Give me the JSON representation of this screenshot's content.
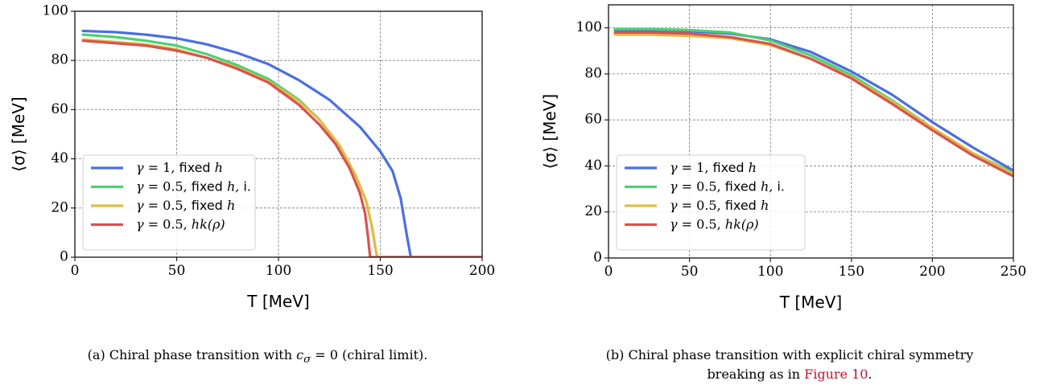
{
  "chart_data": [
    {
      "type": "line",
      "xlabel": "T [MeV]",
      "ylabel": "⟨σ⟩ [MeV]",
      "xlim": [
        0,
        200
      ],
      "ylim": [
        0,
        100
      ],
      "xticks": [
        0,
        50,
        100,
        150,
        200
      ],
      "yticks": [
        0,
        20,
        40,
        60,
        80,
        100
      ],
      "grid": true,
      "legend_position": "lower-left",
      "series": [
        {
          "name": "γ = 1, fixed h",
          "color": "#4c6ee0",
          "x": [
            4,
            20,
            35,
            50,
            65,
            80,
            95,
            110,
            125,
            140,
            150,
            156,
            160,
            163,
            165,
            170,
            200
          ],
          "y": [
            92,
            91.5,
            90.5,
            89,
            86.5,
            83,
            78.5,
            72,
            64,
            53,
            43,
            35,
            24,
            9,
            0,
            0,
            0
          ]
        },
        {
          "name": "γ = 0.5, fixed h, i.",
          "color": "#4cd070",
          "x": [
            4,
            20,
            35,
            50,
            65,
            80,
            95,
            110,
            120,
            130,
            138,
            143,
            146,
            147.5,
            148.5,
            155,
            200
          ],
          "y": [
            90.5,
            89.5,
            88,
            86,
            82.5,
            78,
            72.5,
            64,
            56,
            45,
            33,
            23,
            12,
            4,
            0,
            0,
            0
          ]
        },
        {
          "name": "γ = 0.5, fixed h",
          "color": "#dfbd45",
          "x": [
            4,
            20,
            35,
            50,
            65,
            80,
            95,
            110,
            120,
            130,
            138,
            143,
            146,
            147.5,
            148.5,
            155,
            200
          ],
          "y": [
            88.5,
            87.5,
            86.5,
            84.5,
            81,
            77,
            71.5,
            63.5,
            56,
            45.5,
            33,
            23,
            12,
            4,
            0,
            0,
            0
          ]
        },
        {
          "name": "γ = 0.5, hk(ρ)",
          "color": "#d9534f",
          "x": [
            4,
            20,
            35,
            50,
            65,
            80,
            95,
            110,
            120,
            128,
            135,
            140,
            142.5,
            144,
            145,
            150,
            200
          ],
          "y": [
            88,
            87,
            86,
            84,
            81,
            76.5,
            71,
            62,
            54,
            46,
            36,
            26,
            18,
            8,
            0,
            0,
            0
          ]
        }
      ],
      "caption": {
        "prefix": "(a) Chiral phase transition with ",
        "math": "c",
        "sub": "σ",
        "suffix": " = 0 (chiral limit)."
      }
    },
    {
      "type": "line",
      "xlabel": "T [MeV]",
      "ylabel": "⟨σ⟩ [MeV]",
      "xlim": [
        0,
        250
      ],
      "ylim": [
        0,
        110
      ],
      "xticks": [
        0,
        50,
        100,
        150,
        200,
        250
      ],
      "yticks": [
        0,
        20,
        40,
        60,
        80,
        100
      ],
      "grid": true,
      "legend_position": "lower-left",
      "series": [
        {
          "name": "γ = 1, fixed h",
          "color": "#4c6ee0",
          "x": [
            4,
            25,
            50,
            75,
            100,
            125,
            150,
            175,
            200,
            225,
            250
          ],
          "y": [
            99,
            99,
            98.5,
            97.5,
            95,
            89.5,
            81,
            71,
            59,
            48,
            38
          ]
        },
        {
          "name": "γ = 0.5, fixed h, i.",
          "color": "#4cd070",
          "x": [
            4,
            25,
            50,
            75,
            100,
            125,
            150,
            175,
            200,
            225,
            250
          ],
          "y": [
            99.5,
            99.5,
            99,
            98,
            94.5,
            88,
            79.5,
            68.5,
            56.5,
            45.5,
            37
          ]
        },
        {
          "name": "γ = 0.5, fixed h",
          "color": "#dfbd45",
          "x": [
            4,
            25,
            50,
            75,
            100,
            125,
            150,
            175,
            200,
            225,
            250
          ],
          "y": [
            97,
            97,
            96.5,
            95.5,
            92.5,
            86.5,
            78.5,
            68,
            56.5,
            45.5,
            36.5
          ]
        },
        {
          "name": "γ = 0.5, hk(ρ)",
          "color": "#d9534f",
          "x": [
            4,
            25,
            50,
            75,
            100,
            125,
            150,
            175,
            200,
            225,
            250
          ],
          "y": [
            98,
            98,
            97.5,
            96,
            93,
            86.5,
            78,
            67,
            55.5,
            44.5,
            35.5
          ]
        }
      ],
      "caption": {
        "line1_prefix": "(b) Chiral phase transition with explicit chiral symmetry",
        "line2_prefix": "breaking as in ",
        "ref": "Figure 10",
        "line2_suffix": "."
      }
    }
  ]
}
